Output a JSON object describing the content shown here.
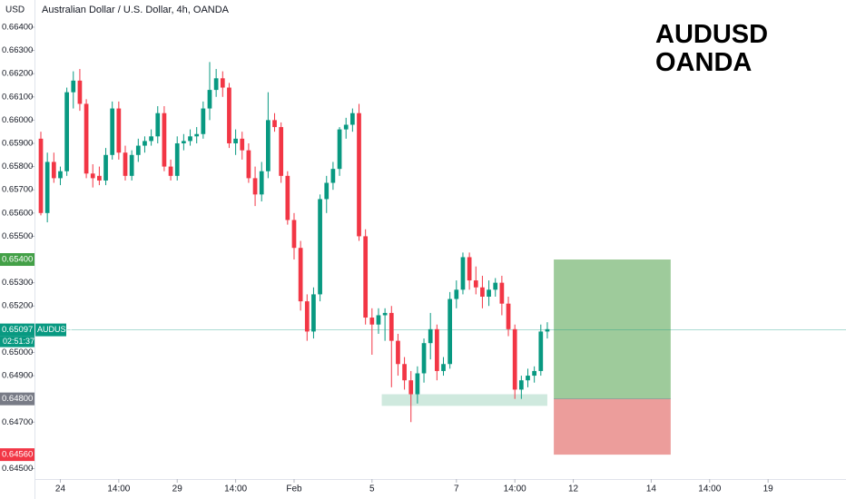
{
  "chart_data": {
    "type": "candlestick",
    "title": "Australian Dollar / U.S. Dollar, 4h, OANDA",
    "currency": "USD",
    "watermark": [
      "AUDUSD",
      "OANDA"
    ],
    "up_color": "#089981",
    "down_color": "#f23645",
    "open": [
      0.6592,
      0.656,
      0.6582,
      0.6575,
      0.6578,
      0.6612,
      0.6617,
      0.6607,
      0.6577,
      0.6576,
      0.6574,
      0.6585,
      0.6605,
      0.6586,
      0.6576,
      0.6585,
      0.6589,
      0.6591,
      0.6593,
      0.6603,
      0.658,
      0.6576,
      0.659,
      0.6591,
      0.6593,
      0.6594,
      0.6605,
      0.6613,
      0.6618,
      0.6614,
      0.659,
      0.6592,
      0.6587,
      0.6575,
      0.6568,
      0.6578,
      0.66,
      0.6597,
      0.6576,
      0.6557,
      0.6545,
      0.6522,
      0.6509,
      0.6525,
      0.6566,
      0.6573,
      0.6579,
      0.6596,
      0.6598,
      0.6603,
      0.655,
      0.6515,
      0.6512,
      0.6516,
      0.6517,
      0.6505,
      0.6495,
      0.6488,
      0.6482,
      0.6491,
      0.6504,
      0.651,
      0.6492,
      0.6495,
      0.6523,
      0.6527,
      0.6541,
      0.6531,
      0.6528,
      0.6524,
      0.6527,
      0.653,
      0.6521,
      0.651,
      0.6484,
      0.6488,
      0.649,
      0.6492,
      0.6509
    ],
    "high": [
      0.6595,
      0.6586,
      0.6586,
      0.658,
      0.6614,
      0.6621,
      0.6622,
      0.6609,
      0.6581,
      0.658,
      0.6588,
      0.6608,
      0.6608,
      0.6589,
      0.6587,
      0.6592,
      0.6593,
      0.6596,
      0.6606,
      0.6606,
      0.6583,
      0.6593,
      0.6594,
      0.6596,
      0.6597,
      0.6608,
      0.6625,
      0.6622,
      0.6621,
      0.6616,
      0.6596,
      0.6595,
      0.659,
      0.658,
      0.6582,
      0.6612,
      0.6603,
      0.6599,
      0.6578,
      0.656,
      0.6548,
      0.6525,
      0.6528,
      0.6568,
      0.6576,
      0.6582,
      0.6597,
      0.6601,
      0.6605,
      0.6607,
      0.6553,
      0.6519,
      0.6519,
      0.6519,
      0.652,
      0.6508,
      0.6498,
      0.6492,
      0.6494,
      0.6506,
      0.6517,
      0.6512,
      0.6498,
      0.6526,
      0.6531,
      0.6543,
      0.6543,
      0.6537,
      0.6533,
      0.6531,
      0.6532,
      0.6533,
      0.6524,
      0.6512,
      0.649,
      0.6493,
      0.6494,
      0.6512,
      0.6513
    ],
    "low": [
      0.6559,
      0.6556,
      0.6573,
      0.6572,
      0.6576,
      0.6605,
      0.6604,
      0.6575,
      0.6571,
      0.6572,
      0.6572,
      0.6583,
      0.6583,
      0.6574,
      0.6574,
      0.6582,
      0.6586,
      0.6589,
      0.659,
      0.6578,
      0.6574,
      0.6574,
      0.6587,
      0.6589,
      0.659,
      0.6592,
      0.66,
      0.661,
      0.661,
      0.6588,
      0.6585,
      0.6583,
      0.6573,
      0.6563,
      0.6565,
      0.6575,
      0.6595,
      0.6573,
      0.6555,
      0.654,
      0.6518,
      0.6505,
      0.6506,
      0.6522,
      0.656,
      0.657,
      0.6576,
      0.6592,
      0.6595,
      0.6548,
      0.6512,
      0.6499,
      0.6508,
      0.6505,
      0.6485,
      0.649,
      0.6484,
      0.647,
      0.6478,
      0.6487,
      0.6497,
      0.6488,
      0.649,
      0.6493,
      0.6519,
      0.6525,
      0.6527,
      0.6525,
      0.6519,
      0.652,
      0.6524,
      0.6516,
      0.6507,
      0.648,
      0.648,
      0.6485,
      0.6487,
      0.649,
      0.6506
    ],
    "close": [
      0.656,
      0.6582,
      0.6575,
      0.6578,
      0.6612,
      0.6617,
      0.6607,
      0.6577,
      0.6575,
      0.6574,
      0.6585,
      0.6605,
      0.6586,
      0.6576,
      0.6585,
      0.6589,
      0.6591,
      0.6593,
      0.6603,
      0.658,
      0.6576,
      0.659,
      0.6591,
      0.6593,
      0.6594,
      0.6605,
      0.6613,
      0.6618,
      0.6614,
      0.659,
      0.6592,
      0.6587,
      0.6575,
      0.6568,
      0.6578,
      0.66,
      0.6597,
      0.6576,
      0.6557,
      0.6545,
      0.6522,
      0.6509,
      0.6525,
      0.6566,
      0.6573,
      0.6579,
      0.6596,
      0.6598,
      0.6603,
      0.655,
      0.6515,
      0.6512,
      0.6516,
      0.6517,
      0.6505,
      0.6495,
      0.6488,
      0.6482,
      0.6491,
      0.6504,
      0.651,
      0.6492,
      0.6495,
      0.6523,
      0.6527,
      0.6541,
      0.6531,
      0.6528,
      0.6524,
      0.6527,
      0.653,
      0.6521,
      0.651,
      0.6484,
      0.6488,
      0.649,
      0.6492,
      0.6509,
      0.651
    ],
    "xlim": [
      -0.7,
      124
    ],
    "xticks": [
      {
        "value": 3,
        "label": "24"
      },
      {
        "value": 12,
        "label": "14:00"
      },
      {
        "value": 21,
        "label": "29"
      },
      {
        "value": 30,
        "label": "14:00"
      },
      {
        "value": 39,
        "label": "Feb"
      },
      {
        "value": 51,
        "label": "5"
      },
      {
        "value": 64,
        "label": "7"
      },
      {
        "value": 73,
        "label": "14:00"
      },
      {
        "value": 82,
        "label": "12"
      },
      {
        "value": 94,
        "label": "14"
      },
      {
        "value": 103,
        "label": "14:00"
      },
      {
        "value": 112,
        "label": "19"
      }
    ],
    "ylim": [
      0.64455,
      0.66517
    ],
    "yticks": [
      {
        "value": 0.664,
        "label": "0.66400"
      },
      {
        "value": 0.663,
        "label": "0.66300"
      },
      {
        "value": 0.662,
        "label": "0.66200"
      },
      {
        "value": 0.661,
        "label": "0.66100"
      },
      {
        "value": 0.66,
        "label": "0.66000"
      },
      {
        "value": 0.659,
        "label": "0.65900"
      },
      {
        "value": 0.658,
        "label": "0.65800"
      },
      {
        "value": 0.657,
        "label": "0.65700"
      },
      {
        "value": 0.656,
        "label": "0.65600"
      },
      {
        "value": 0.655,
        "label": "0.65500"
      },
      {
        "value": 0.653,
        "label": "0.65300"
      },
      {
        "value": 0.652,
        "label": "0.65200"
      },
      {
        "value": 0.65,
        "label": "0.65000"
      },
      {
        "value": 0.649,
        "label": "0.64900"
      },
      {
        "value": 0.647,
        "label": "0.64700"
      },
      {
        "value": 0.645,
        "label": "0.64500"
      }
    ],
    "last_price": {
      "value": 0.65097,
      "label": "0.65097",
      "color": "#089981",
      "symbol": "AUDUSD",
      "countdown": "02:51:37"
    },
    "price_labels": [
      {
        "value": 0.654,
        "label": "0.65400",
        "color": "#43a047"
      },
      {
        "value": 0.648,
        "label": "0.64800",
        "color": "#787b86"
      },
      {
        "value": 0.6456,
        "label": "0.64560",
        "color": "#f23645"
      }
    ],
    "position": {
      "start": 79,
      "end": 97,
      "target": 0.654,
      "entry": 0.648,
      "stop": 0.6456,
      "profit_color": "#9ecb9b",
      "loss_color": "#ec9d9b"
    },
    "zone": {
      "start": 52.5,
      "end": 78,
      "low": 0.6477,
      "high": 0.6482,
      "color": "#cfe9de"
    }
  }
}
